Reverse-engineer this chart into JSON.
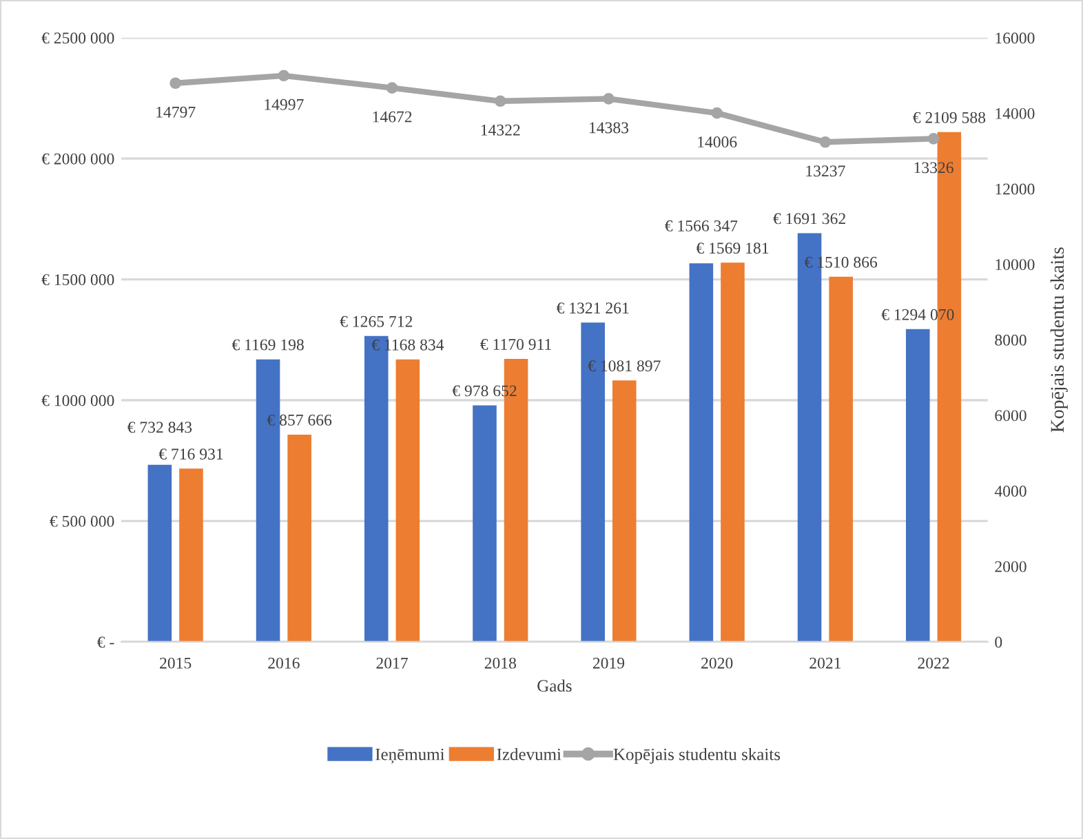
{
  "chart_data": {
    "type": "bar",
    "xlabel": "Gads",
    "y2label": "Kopējais studentu skaits",
    "categories": [
      "2015",
      "2016",
      "2017",
      "2018",
      "2019",
      "2020",
      "2021",
      "2022"
    ],
    "series": [
      {
        "name": "Ieņēmumi",
        "color": "#4472c4",
        "values": [
          732843,
          1169198,
          1265712,
          978652,
          1321261,
          1566347,
          1691362,
          1294070
        ],
        "value_labels": [
          "€ 732 843",
          "€ 1169 198",
          "€ 1265 712",
          "€ 978 652",
          "€ 1321 261",
          "€ 1566 347",
          "€ 1691 362",
          "€ 1294 070"
        ]
      },
      {
        "name": "Izdevumi",
        "color": "#ed7d31",
        "values": [
          716931,
          857666,
          1168834,
          1170911,
          1081897,
          1569181,
          1510866,
          2109588
        ],
        "value_labels": [
          "€ 716 931",
          "€ 857 666",
          "€ 1168 834",
          "€ 1170 911",
          "€ 1081 897",
          "€ 1569 181",
          "€ 1510 866",
          "€ 2109 588"
        ]
      },
      {
        "name": "Kopējais studentu skaits",
        "type": "line",
        "axis": "y2",
        "color": "#a5a5a5",
        "marker": "circle",
        "values": [
          14797,
          14997,
          14672,
          14322,
          14383,
          14006,
          13237,
          13326
        ],
        "value_labels": [
          "14797",
          "14997",
          "14672",
          "14322",
          "14383",
          "14006",
          "13237",
          "13326"
        ]
      }
    ],
    "ylim": [
      0,
      2500000
    ],
    "yticks": [
      {
        "value": 0,
        "label": "€ -"
      },
      {
        "value": 500000,
        "label": "€ 500 000"
      },
      {
        "value": 1000000,
        "label": "€ 1000 000"
      },
      {
        "value": 1500000,
        "label": "€ 1500 000"
      },
      {
        "value": 2000000,
        "label": "€ 2000 000"
      },
      {
        "value": 2500000,
        "label": "€ 2500 000"
      }
    ],
    "y2lim": [
      0,
      16000
    ],
    "y2ticks": [
      0,
      2000,
      4000,
      6000,
      8000,
      10000,
      12000,
      14000,
      16000
    ],
    "grid": "y",
    "legend": "bottom"
  }
}
